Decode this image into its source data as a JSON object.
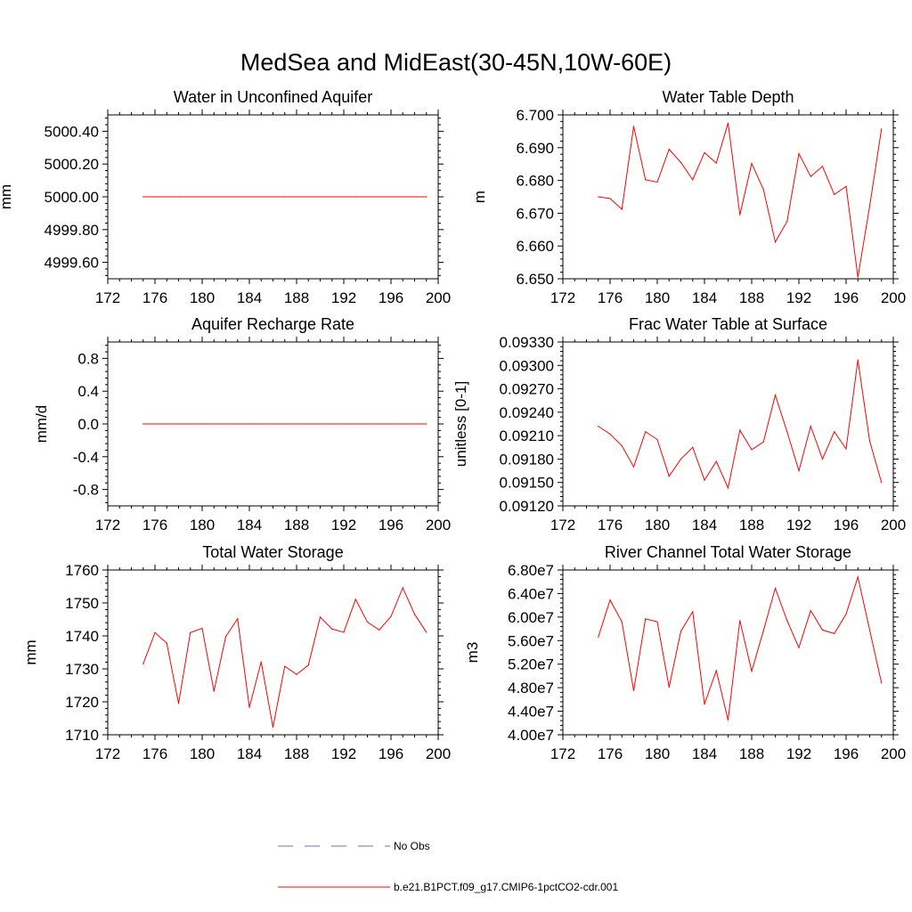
{
  "title": "MedSea and MidEast(30-45N,10W-60E)",
  "legend": [
    {
      "label": "No Obs",
      "color": "#6c6cc9",
      "dash": true
    },
    {
      "label": "b.e21.B1PCT.f09_g17.CMIP6-1pctCO2-cdr.001",
      "color": "#ff0000",
      "dash": false
    }
  ],
  "line_color": "#ff0000",
  "chart_data": [
    {
      "type": "line",
      "title": "Water in Unconfined Aquifer",
      "ylabel": "mm",
      "xlim": [
        172,
        200
      ],
      "ylim": [
        4999.5,
        5000.5
      ],
      "xticks": [
        172,
        176,
        180,
        184,
        188,
        192,
        196,
        200
      ],
      "yticks": [
        4999.6,
        4999.8,
        5000.0,
        5000.2,
        5000.4
      ],
      "ytick_labels": [
        "4999.60",
        "4999.80",
        "5000.00",
        "5000.20",
        "5000.40"
      ],
      "series": [
        {
          "x": [
            175,
            176,
            177,
            178,
            179,
            180,
            181,
            182,
            183,
            184,
            185,
            186,
            187,
            188,
            189,
            190,
            191,
            192,
            193,
            194,
            195,
            196,
            197,
            198,
            199
          ],
          "y": [
            5000,
            5000,
            5000,
            5000,
            5000,
            5000,
            5000,
            5000,
            5000,
            5000,
            5000,
            5000,
            5000,
            5000,
            5000,
            5000,
            5000,
            5000,
            5000,
            5000,
            5000,
            5000,
            5000,
            5000,
            5000
          ]
        }
      ]
    },
    {
      "type": "line",
      "title": "Water Table Depth",
      "ylabel": "m",
      "xlim": [
        172,
        200
      ],
      "ylim": [
        6.65,
        6.7
      ],
      "xticks": [
        172,
        176,
        180,
        184,
        188,
        192,
        196,
        200
      ],
      "yticks": [
        6.65,
        6.66,
        6.67,
        6.68,
        6.69,
        6.7
      ],
      "ytick_labels": [
        "6.650",
        "6.660",
        "6.670",
        "6.680",
        "6.690",
        "6.700"
      ],
      "series": [
        {
          "x": [
            175,
            176,
            177,
            178,
            179,
            180,
            181,
            182,
            183,
            184,
            185,
            186,
            187,
            188,
            189,
            190,
            191,
            192,
            193,
            194,
            195,
            196,
            197,
            198,
            199
          ],
          "y": [
            6.675,
            6.6745,
            6.6712,
            6.6965,
            6.6802,
            6.6795,
            6.6895,
            6.6855,
            6.6802,
            6.6885,
            6.6853,
            6.6975,
            6.6695,
            6.6852,
            6.6772,
            6.6612,
            6.6675,
            6.6882,
            6.6812,
            6.6843,
            6.6757,
            6.6782,
            6.6505,
            6.6722,
            6.6957
          ]
        }
      ]
    },
    {
      "type": "line",
      "title": "Aquifer Recharge Rate",
      "ylabel": "mm/d",
      "xlim": [
        172,
        200
      ],
      "ylim": [
        -1.0,
        1.0
      ],
      "xticks": [
        172,
        176,
        180,
        184,
        188,
        192,
        196,
        200
      ],
      "yticks": [
        -0.8,
        -0.4,
        0.0,
        0.4,
        0.8
      ],
      "ytick_labels": [
        "-0.8",
        "-0.4",
        "0.0",
        "0.4",
        "0.8"
      ],
      "series": [
        {
          "x": [
            175,
            176,
            177,
            178,
            179,
            180,
            181,
            182,
            183,
            184,
            185,
            186,
            187,
            188,
            189,
            190,
            191,
            192,
            193,
            194,
            195,
            196,
            197,
            198,
            199
          ],
          "y": [
            0,
            0,
            0,
            0,
            0,
            0,
            0,
            0,
            0,
            0,
            0,
            0,
            0,
            0,
            0,
            0,
            0,
            0,
            0,
            0,
            0,
            0,
            0,
            0,
            0
          ]
        }
      ]
    },
    {
      "type": "line",
      "title": "Frac Water Table at Surface",
      "ylabel": "unitless [0-1]",
      "xlim": [
        172,
        200
      ],
      "ylim": [
        0.0912,
        0.0933
      ],
      "xticks": [
        172,
        176,
        180,
        184,
        188,
        192,
        196,
        200
      ],
      "yticks": [
        0.0912,
        0.0915,
        0.0918,
        0.0921,
        0.0924,
        0.0927,
        0.093,
        0.0933
      ],
      "ytick_labels": [
        "0.09120",
        "0.09150",
        "0.09180",
        "0.09210",
        "0.09240",
        "0.09270",
        "0.09300",
        "0.09330"
      ],
      "series": [
        {
          "x": [
            175,
            176,
            177,
            178,
            179,
            180,
            181,
            182,
            183,
            184,
            185,
            186,
            187,
            188,
            189,
            190,
            191,
            192,
            193,
            194,
            195,
            196,
            197,
            198,
            199
          ],
          "y": [
            0.09222,
            0.09212,
            0.09197,
            0.0917,
            0.09215,
            0.09205,
            0.09158,
            0.0918,
            0.09195,
            0.09153,
            0.09177,
            0.09143,
            0.09217,
            0.09192,
            0.09202,
            0.09262,
            0.09215,
            0.09165,
            0.09222,
            0.0918,
            0.09215,
            0.09193,
            0.09307,
            0.09203,
            0.0915
          ]
        }
      ]
    },
    {
      "type": "line",
      "title": "Total Water Storage",
      "ylabel": "mm",
      "xlim": [
        172,
        200
      ],
      "ylim": [
        1710,
        1760
      ],
      "xticks": [
        172,
        176,
        180,
        184,
        188,
        192,
        196,
        200
      ],
      "yticks": [
        1710,
        1720,
        1730,
        1740,
        1750,
        1760
      ],
      "ytick_labels": [
        "1710",
        "1720",
        "1730",
        "1740",
        "1750",
        "1760"
      ],
      "series": [
        {
          "x": [
            175,
            176,
            177,
            178,
            179,
            180,
            181,
            182,
            183,
            184,
            185,
            186,
            187,
            188,
            189,
            190,
            191,
            192,
            193,
            194,
            195,
            196,
            197,
            198,
            199
          ],
          "y": [
            1731.5,
            1741,
            1737.8,
            1719.5,
            1741,
            1742.3,
            1723.2,
            1739.8,
            1745.2,
            1718.3,
            1732.1,
            1712.3,
            1730.8,
            1728.3,
            1731.1,
            1745.7,
            1742.1,
            1741.1,
            1751.1,
            1744.2,
            1741.8,
            1745.9,
            1754.6,
            1746.6,
            1741.1
          ]
        }
      ]
    },
    {
      "type": "line",
      "title": "River Channel Total Water Storage",
      "ylabel": "m3",
      "xlim": [
        172,
        200
      ],
      "ylim": [
        40000000,
        68000000
      ],
      "xticks": [
        172,
        176,
        180,
        184,
        188,
        192,
        196,
        200
      ],
      "yticks": [
        40000000,
        44000000,
        48000000,
        52000000,
        56000000,
        60000000,
        64000000,
        68000000
      ],
      "ytick_labels": [
        "4.00e7",
        "4.40e7",
        "4.80e7",
        "5.20e7",
        "5.60e7",
        "6.00e7",
        "6.40e7",
        "6.80e7"
      ],
      "series": [
        {
          "x": [
            175,
            176,
            177,
            178,
            179,
            180,
            181,
            182,
            183,
            184,
            185,
            186,
            187,
            188,
            189,
            190,
            191,
            192,
            193,
            194,
            195,
            196,
            197,
            198,
            199
          ],
          "y": [
            56600000,
            62900000,
            59200000,
            47500000,
            59700000,
            59200000,
            48100000,
            57600000,
            60900000,
            45200000,
            50900000,
            42500000,
            59400000,
            50800000,
            57700000,
            64900000,
            59400000,
            54800000,
            61100000,
            57800000,
            57200000,
            60500000,
            66800000,
            57800000,
            48800000
          ]
        }
      ]
    }
  ]
}
